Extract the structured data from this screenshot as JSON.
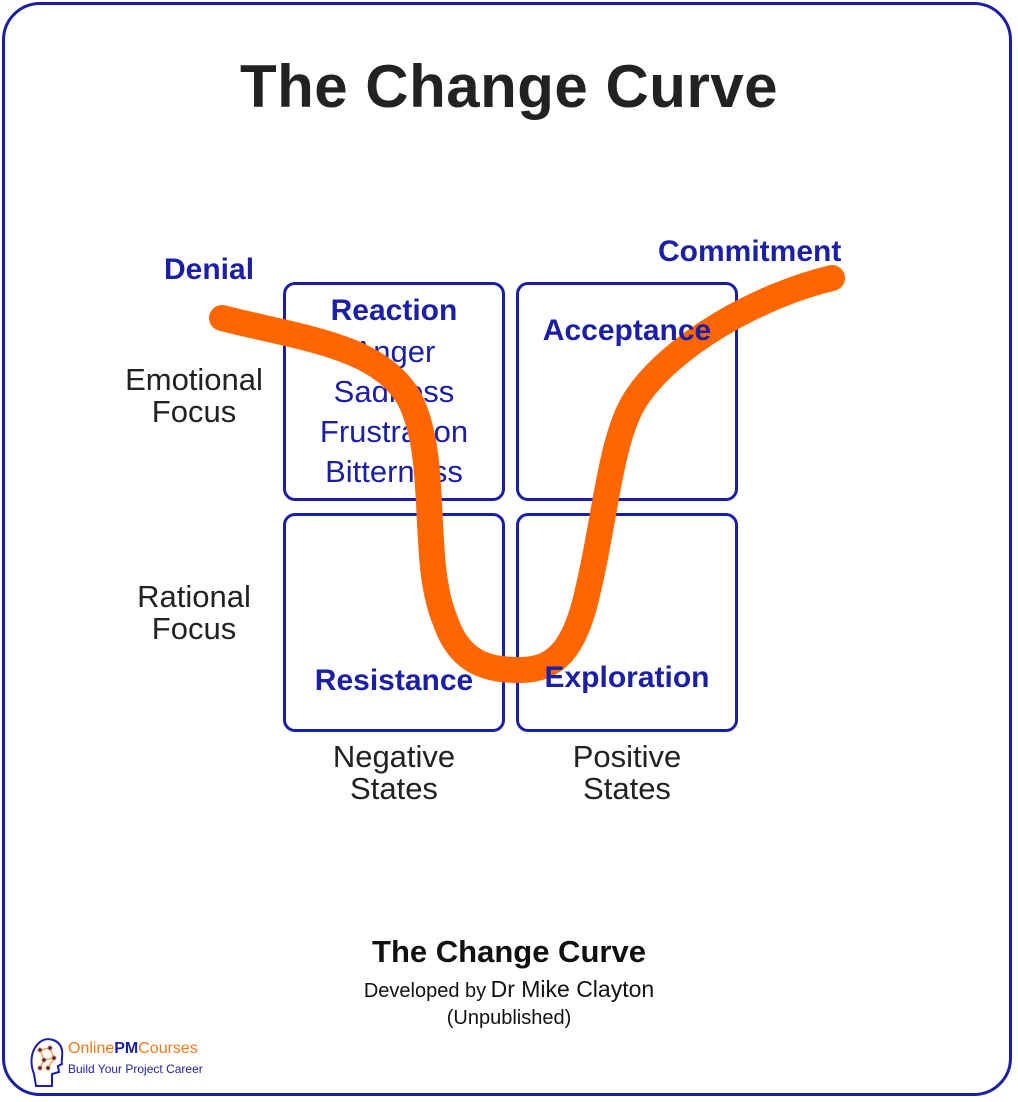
{
  "title": "The Change Curve",
  "stages": {
    "denial": "Denial",
    "commitment": "Commitment",
    "reaction": "Reaction",
    "acceptance": "Acceptance",
    "resistance": "Resistance",
    "exploration": "Exploration"
  },
  "emotions": [
    "Anger",
    "Sadness",
    "Frustration",
    "Bitterness"
  ],
  "row_labels": {
    "emotional": [
      "Emotional",
      "Focus"
    ],
    "rational": [
      "Rational",
      "Focus"
    ]
  },
  "column_labels": {
    "negative": [
      "Negative",
      "States"
    ],
    "positive": [
      "Positive",
      "States"
    ]
  },
  "caption": {
    "title": "The Change Curve",
    "developed_by": "Developed by",
    "author": "Dr Mike Clayton",
    "note": "(Unpublished)"
  },
  "logo": {
    "online": "Online",
    "pm": "PM",
    "courses": "Courses",
    "tagline": "Build Your Project Career",
    "icon": "head-network-icon"
  },
  "colors": {
    "accent_blue": "#1b1fa8",
    "curve_orange": "#ff6600",
    "logo_orange": "#f07a1a"
  }
}
